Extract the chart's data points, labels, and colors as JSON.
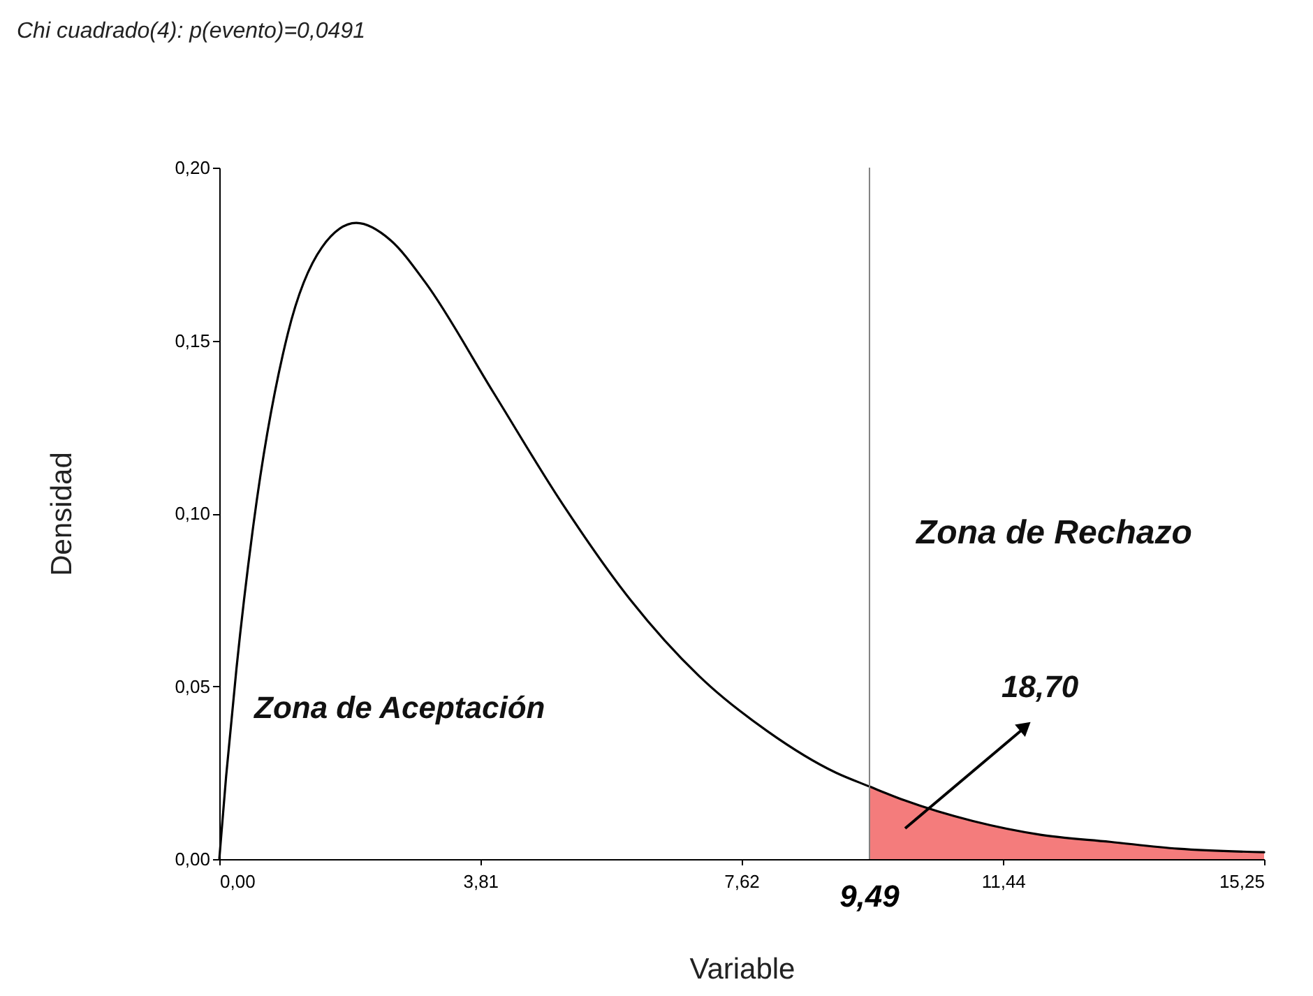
{
  "chart_data": {
    "type": "line",
    "title": "Chi cuadrado(4): p(evento)=0,0491",
    "xlabel": "Variable",
    "ylabel": "Densidad",
    "series": [
      {
        "type": "area",
        "color": "#f47c7c",
        "x": [
          9.49,
          10,
          11,
          12,
          13,
          14,
          15.25
        ],
        "values": [
          0.021,
          0.017,
          0.011,
          0.007,
          0.005,
          0.003,
          0.002
        ]
      },
      {
        "color": "#000000",
        "x": [
          0,
          0.1,
          0.25,
          0.5,
          1,
          1.5,
          2,
          2.5,
          3,
          4,
          5,
          6,
          7,
          8,
          9,
          9.49,
          10,
          11,
          12,
          13,
          14,
          15.25
        ],
        "values": [
          0,
          0.024,
          0.055,
          0.097,
          0.152,
          0.177,
          0.184,
          0.179,
          0.167,
          0.135,
          0.103,
          0.075,
          0.053,
          0.037,
          0.025,
          0.021,
          0.017,
          0.011,
          0.007,
          0.005,
          0.003,
          0.002
        ]
      }
    ],
    "xlim": [
      0,
      15.25
    ],
    "xticks": [
      {
        "value": 0,
        "label": "0,00"
      },
      {
        "value": 3.81,
        "label": "3,81"
      },
      {
        "value": 7.62,
        "label": "7,62"
      },
      {
        "value": 11.44,
        "label": "11,44"
      },
      {
        "value": 15.25,
        "label": "15,25"
      }
    ],
    "ylim": [
      0,
      0.2
    ],
    "yticks": [
      {
        "value": 0,
        "label": "0,00"
      },
      {
        "value": 0.05,
        "label": "0,05"
      },
      {
        "value": 0.1,
        "label": "0,10"
      },
      {
        "value": 0.15,
        "label": "0,15"
      },
      {
        "value": 0.2,
        "label": "0,20"
      }
    ],
    "ref_lines": [
      {
        "axis": "x",
        "value": 9.49,
        "label": "9,49",
        "color": "#808080"
      }
    ],
    "annotations": [
      "Zona de Aceptación",
      "Zona de Rechazo",
      "18,70"
    ],
    "marker": "none",
    "grid": false
  }
}
